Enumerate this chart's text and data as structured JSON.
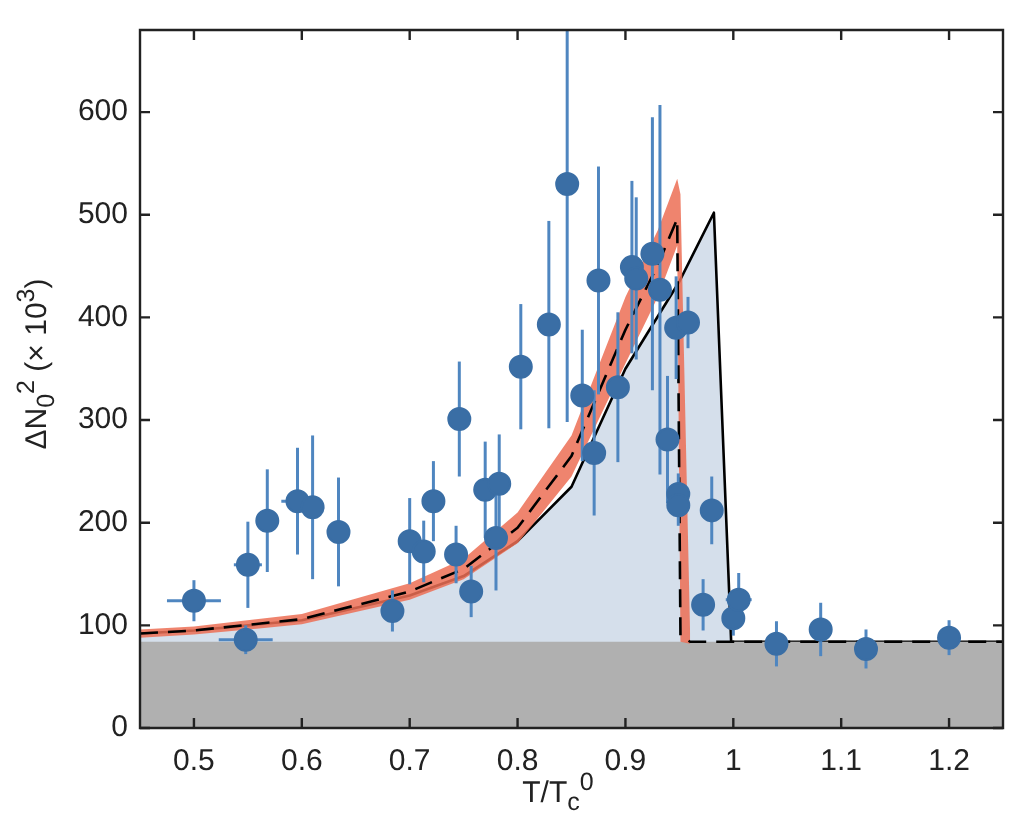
{
  "chart_data": {
    "type": "line",
    "xlabel": "T/T$_{c}$$^{0}$",
    "ylabel": "ΔN$_{0}$$^{2}$ (× 10$^{3}$)",
    "xlim": [
      0.45,
      1.25
    ],
    "xticks": [
      0.5,
      0.6,
      0.7,
      0.8,
      0.9,
      1,
      1.1,
      1.2
    ],
    "ylim": [
      0,
      680
    ],
    "yticks": [
      0,
      100,
      200,
      300,
      400,
      500,
      600
    ],
    "grid": false,
    "legend": false,
    "bands": [
      {
        "axis": "y",
        "from": 0,
        "to": 84,
        "color": "#b0b0b0"
      }
    ],
    "series": [
      {
        "type": "area",
        "color": "#d5dfeb",
        "line_style": "solid",
        "x": [
          0.45,
          0.5,
          0.6,
          0.7,
          0.75,
          0.8,
          0.85,
          0.9,
          0.95,
          0.982,
          0.998,
          1.25
        ],
        "values": [
          92,
          95,
          105,
          129,
          148,
          182,
          235,
          350,
          435,
          502,
          84,
          84
        ]
      },
      {
        "color": "#000000",
        "line_style": "dashed",
        "x": [
          0.45,
          0.5,
          0.6,
          0.7,
          0.75,
          0.8,
          0.85,
          0.9,
          0.93,
          0.948,
          0.951,
          0.96,
          1.25
        ],
        "values": [
          92,
          95,
          106,
          133,
          155,
          195,
          265,
          388,
          451,
          496,
          90,
          84,
          84
        ],
        "lower": [
          88,
          91,
          101,
          125,
          145,
          180,
          245,
          355,
          420,
          470,
          84,
          82,
          null
        ],
        "upper": [
          96,
          99,
          111,
          141,
          165,
          210,
          285,
          420,
          485,
          535,
          520,
          90,
          null
        ]
      },
      {
        "type": "scatter",
        "color": "#3a6ea5",
        "marker": "circle",
        "x": [
          0.5,
          0.548,
          0.55,
          0.568,
          0.596,
          0.61,
          0.634,
          0.684,
          0.7,
          0.713,
          0.722,
          0.743,
          0.746,
          0.757,
          0.77,
          0.783,
          0.78,
          0.803,
          0.829,
          0.846,
          0.86,
          0.875,
          0.871,
          0.893,
          0.906,
          0.91,
          0.925,
          0.932,
          0.939,
          0.947,
          0.958,
          0.949,
          0.949,
          0.98,
          0.972,
          1.0,
          1.005,
          1.04,
          1.081,
          1.123,
          1.2
        ],
        "values": [
          124,
          86,
          159,
          202,
          221,
          215,
          191,
          114,
          182,
          172,
          221,
          169,
          301,
          133,
          232,
          238,
          185,
          352,
          393,
          530,
          324,
          436,
          268,
          332,
          449,
          438,
          462,
          427,
          281,
          390,
          395,
          228,
          217,
          212,
          120,
          107,
          125,
          82,
          96,
          77,
          88
        ],
        "errors": [
          20,
          14,
          42,
          50,
          52,
          70,
          53,
          20,
          42,
          30,
          39,
          28,
          56,
          25,
          47,
          48,
          51,
          61,
          101,
          [
            298,
            680
          ],
          64,
          111,
          61,
          73,
          84,
          79,
          133,
          180,
          62,
          50,
          25,
          20,
          20,
          33,
          25,
          17,
          26,
          22,
          26,
          19,
          17
        ],
        "xerrors": [
          0.025,
          0.025,
          0.013,
          null,
          0.015,
          0.01,
          0.01,
          0.01,
          0.01,
          null,
          null,
          0.01,
          null,
          0.01,
          null,
          null,
          null,
          null,
          null,
          null,
          null,
          null,
          null,
          null,
          null,
          null,
          null,
          null,
          null,
          null,
          null,
          null,
          null,
          null,
          null,
          null,
          0.012,
          null,
          null,
          null,
          null
        ]
      }
    ]
  }
}
